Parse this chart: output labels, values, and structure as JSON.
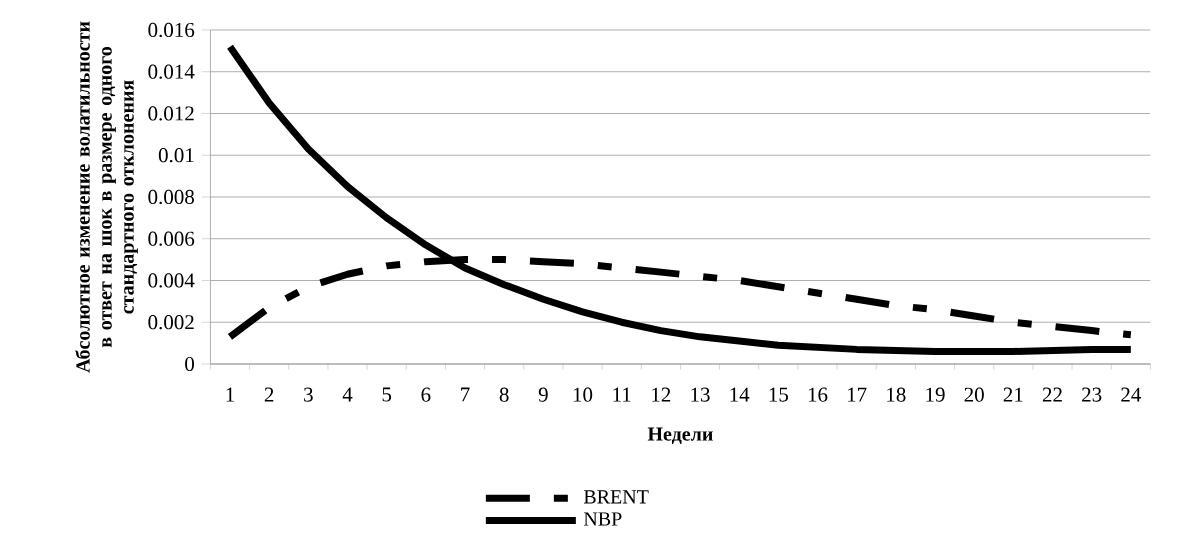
{
  "chart_data": {
    "type": "line",
    "xlabel": "Недели",
    "ylabel": "Абсолютное изменение волатильности в ответ на шок в размере одного стандартного отклонения",
    "categories": [
      "1",
      "2",
      "3",
      "4",
      "5",
      "6",
      "7",
      "8",
      "9",
      "10",
      "11",
      "12",
      "13",
      "14",
      "15",
      "16",
      "17",
      "18",
      "19",
      "20",
      "21",
      "22",
      "23",
      "24"
    ],
    "series": [
      {
        "name": "BRENT",
        "color": "#000000",
        "line_style": "dashed",
        "values": [
          0.0013,
          0.0027,
          0.0037,
          0.0043,
          0.0047,
          0.0049,
          0.005,
          0.005,
          0.0049,
          0.0048,
          0.0046,
          0.0044,
          0.0042,
          0.004,
          0.0037,
          0.0034,
          0.0031,
          0.0028,
          0.0026,
          0.0023,
          0.002,
          0.0018,
          0.0016,
          0.0014
        ]
      },
      {
        "name": "NBP",
        "color": "#000000",
        "line_style": "solid",
        "values": [
          0.0152,
          0.0125,
          0.0103,
          0.0085,
          0.007,
          0.0057,
          0.0046,
          0.0038,
          0.0031,
          0.0025,
          0.002,
          0.0016,
          0.0013,
          0.0011,
          0.0009,
          0.0008,
          0.0007,
          0.00065,
          0.0006,
          0.0006,
          0.0006,
          0.00065,
          0.0007,
          0.0007
        ]
      }
    ],
    "ylim": [
      0,
      0.016
    ],
    "yticks": [
      0,
      0.002,
      0.004,
      0.006,
      0.008,
      0.01,
      0.012,
      0.014,
      0.016
    ],
    "grid": "y",
    "legend": "bottom"
  }
}
